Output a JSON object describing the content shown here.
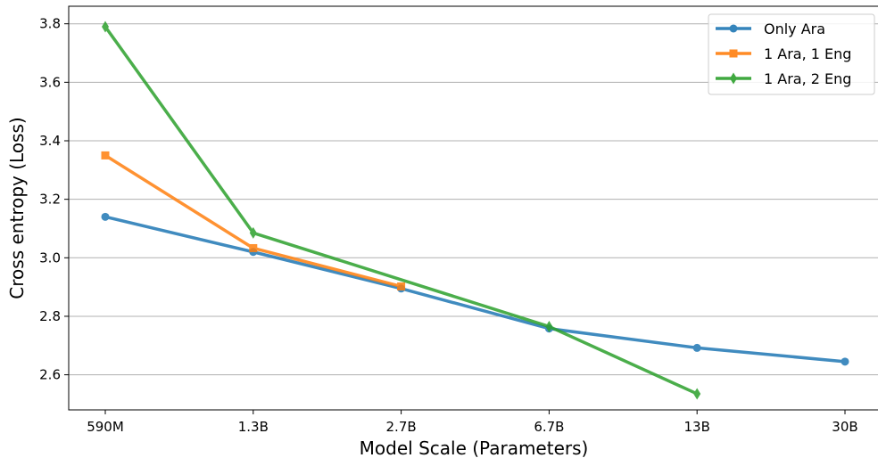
{
  "chart_data": {
    "type": "line",
    "title": "",
    "xlabel": "Model Scale (Parameters)",
    "ylabel": "Cross entropy (Loss)",
    "categories": [
      "590M",
      "1.3B",
      "2.7B",
      "6.7B",
      "13B",
      "30B"
    ],
    "ylim": [
      2.48,
      3.86
    ],
    "yticks": [
      "2.6",
      "2.8",
      "3.0",
      "3.2",
      "3.4",
      "3.6",
      "3.8"
    ],
    "grid": "horizontal",
    "legend_position": "top-right",
    "series": [
      {
        "name": "Only Ara",
        "color": "#1f77b4",
        "marker": "circle",
        "values": [
          3.14,
          3.02,
          2.895,
          2.758,
          2.692,
          2.645
        ]
      },
      {
        "name": "1 Ara, 1 Eng",
        "color": "#ff7f0e",
        "marker": "square",
        "values": [
          3.35,
          3.033,
          2.902,
          null,
          null,
          null
        ]
      },
      {
        "name": "1 Ara, 2 Eng",
        "color": "#2ca02c",
        "marker": "diamond",
        "values": [
          3.79,
          3.085,
          null,
          2.765,
          2.535,
          null
        ]
      }
    ]
  }
}
